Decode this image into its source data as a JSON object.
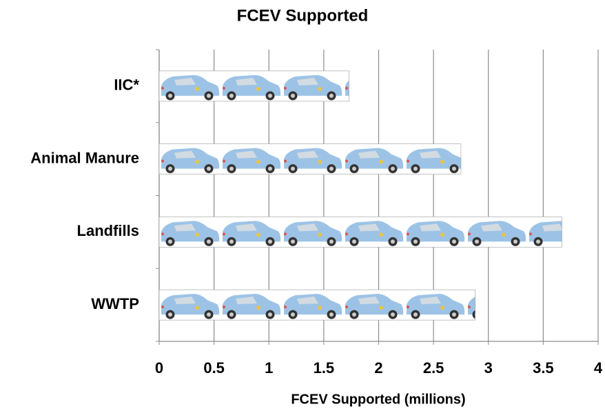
{
  "chart_data": {
    "type": "bar",
    "orientation": "horizontal",
    "title": "FCEV Supported",
    "categories": [
      "IIC*",
      "Animal Manure",
      "Landfills",
      "WWTP"
    ],
    "values": [
      1.73,
      2.75,
      3.67,
      2.88
    ],
    "color": "#9cc3e6",
    "xlim": [
      0,
      4
    ],
    "xticks": [
      0,
      0.5,
      1,
      1.5,
      2,
      2.5,
      3,
      3.5,
      4
    ],
    "xlabel": "FCEV Supported (millions)",
    "grid": true
  }
}
